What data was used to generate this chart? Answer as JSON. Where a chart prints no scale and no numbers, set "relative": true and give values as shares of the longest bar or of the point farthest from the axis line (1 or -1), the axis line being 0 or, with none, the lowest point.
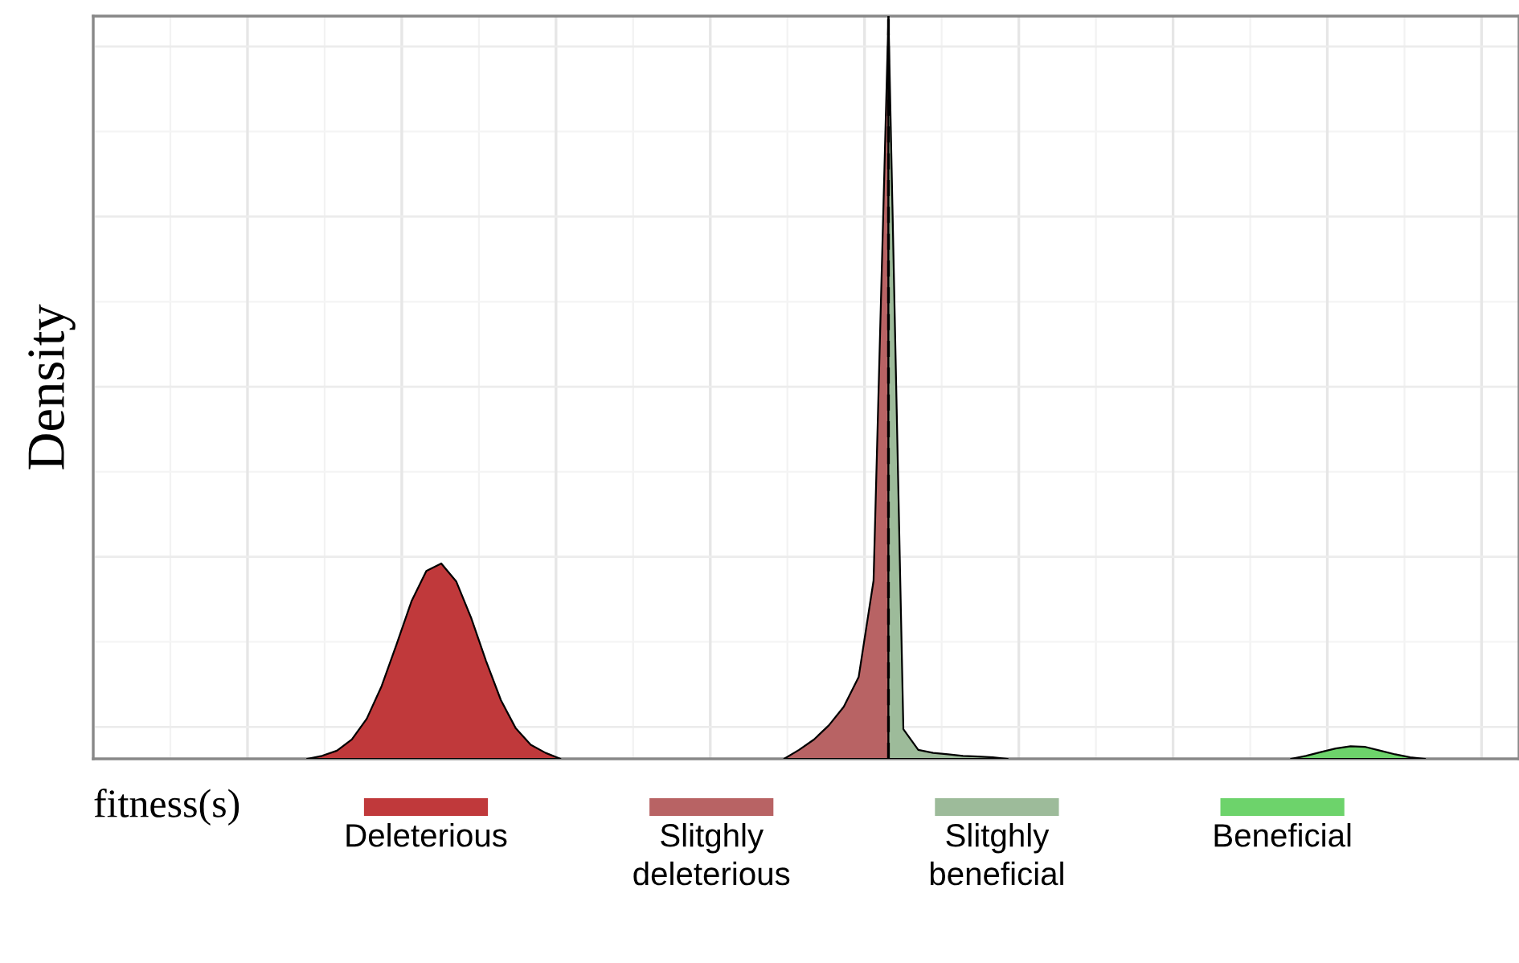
{
  "chart_data": {
    "type": "area",
    "relative": true,
    "ylabel": "Density",
    "legend_title": "fitness(s)",
    "legend": "bottom",
    "grid": true,
    "categories": [
      null,
      null,
      null,
      null,
      null,
      null,
      null,
      null,
      null,
      null,
      null,
      null,
      null,
      null,
      null,
      null,
      null,
      null,
      null,
      null,
      null,
      null,
      null,
      null,
      null,
      null,
      null,
      null,
      null,
      null,
      null,
      null,
      null,
      null,
      null,
      null,
      null,
      null,
      null,
      null,
      null,
      null,
      null,
      null,
      null,
      null,
      null,
      null,
      null,
      null,
      null,
      null,
      null,
      null,
      null,
      null,
      null,
      null,
      null,
      null,
      null,
      null,
      null,
      null,
      null,
      null,
      null,
      null,
      null,
      null,
      null,
      null,
      null,
      null,
      null,
      null,
      null,
      null,
      null,
      null,
      null,
      null,
      null,
      null,
      null,
      null,
      null,
      null,
      null
    ],
    "series": [
      {
        "name": "Deleterious",
        "color": "#c0393b",
        "values": [
          null,
          null,
          null,
          null,
          null,
          null,
          null,
          0,
          0.004,
          0.011,
          0.026,
          0.054,
          0.098,
          0.154,
          0.212,
          0.253,
          0.263,
          0.239,
          0.19,
          0.132,
          0.079,
          0.041,
          0.019,
          0.008,
          0,
          null,
          null,
          null,
          null,
          null,
          null,
          null,
          null,
          null,
          null,
          null,
          null,
          null,
          null,
          null,
          null,
          null,
          null,
          null,
          null,
          null,
          null,
          null,
          null,
          null,
          null,
          null,
          null,
          null,
          null,
          null,
          null,
          null,
          null,
          null,
          null,
          null,
          null,
          null,
          null,
          null,
          null,
          null,
          null,
          null,
          null,
          null,
          null,
          null,
          null,
          null,
          null,
          null,
          null,
          null,
          null,
          null,
          null,
          null,
          null,
          null,
          null,
          null,
          null
        ]
      },
      {
        "name": "Slitghly\ndeleterious",
        "color": "#b86364",
        "values": [
          null,
          null,
          null,
          null,
          null,
          null,
          null,
          null,
          null,
          null,
          null,
          null,
          null,
          null,
          null,
          null,
          null,
          null,
          null,
          null,
          null,
          null,
          null,
          null,
          null,
          null,
          null,
          null,
          null,
          null,
          null,
          null,
          null,
          null,
          null,
          null,
          null,
          null,
          null,
          0,
          0.012,
          0.026,
          0.045,
          0.07,
          0.11,
          0.24,
          1.0,
          null,
          null,
          null,
          null,
          null,
          null,
          null,
          null,
          null,
          null,
          null,
          null,
          null,
          null,
          null,
          null,
          null,
          null,
          null,
          null,
          null,
          null,
          null,
          null,
          null,
          null,
          null,
          null,
          null,
          null,
          null,
          null,
          null,
          null,
          null,
          null,
          null,
          null,
          null,
          null,
          null,
          null
        ]
      },
      {
        "name": "Slitghly\nbeneficial",
        "color": "#9dbb9a",
        "values": [
          null,
          null,
          null,
          null,
          null,
          null,
          null,
          null,
          null,
          null,
          null,
          null,
          null,
          null,
          null,
          null,
          null,
          null,
          null,
          null,
          null,
          null,
          null,
          null,
          null,
          null,
          null,
          null,
          null,
          null,
          null,
          null,
          null,
          null,
          null,
          null,
          null,
          null,
          null,
          null,
          null,
          null,
          null,
          null,
          null,
          null,
          1.0,
          0.04,
          0.012,
          0.008,
          0.006,
          0.004,
          0.003,
          0.002,
          0,
          null,
          null,
          null,
          null,
          null,
          null,
          null,
          null,
          null,
          null,
          null,
          null,
          null,
          null,
          null,
          null,
          null,
          null,
          null,
          null,
          null,
          null,
          null,
          null,
          null,
          null,
          null,
          null,
          null,
          null,
          null,
          null,
          null,
          null
        ]
      },
      {
        "name": "Beneficial",
        "color": "#6dd36b",
        "values": [
          null,
          null,
          null,
          null,
          null,
          null,
          null,
          null,
          null,
          null,
          null,
          null,
          null,
          null,
          null,
          null,
          null,
          null,
          null,
          null,
          null,
          null,
          null,
          null,
          null,
          null,
          null,
          null,
          null,
          null,
          null,
          null,
          null,
          null,
          null,
          null,
          null,
          null,
          null,
          null,
          null,
          null,
          null,
          null,
          null,
          null,
          null,
          null,
          null,
          null,
          null,
          null,
          null,
          null,
          null,
          null,
          null,
          null,
          null,
          null,
          null,
          null,
          null,
          null,
          null,
          null,
          null,
          null,
          null,
          null,
          null,
          null,
          null,
          0,
          0.004,
          0.009,
          0.014,
          0.017,
          0.016,
          0.011,
          0.006,
          0.002,
          0,
          null,
          null,
          null,
          null,
          null,
          null
        ]
      }
    ]
  }
}
